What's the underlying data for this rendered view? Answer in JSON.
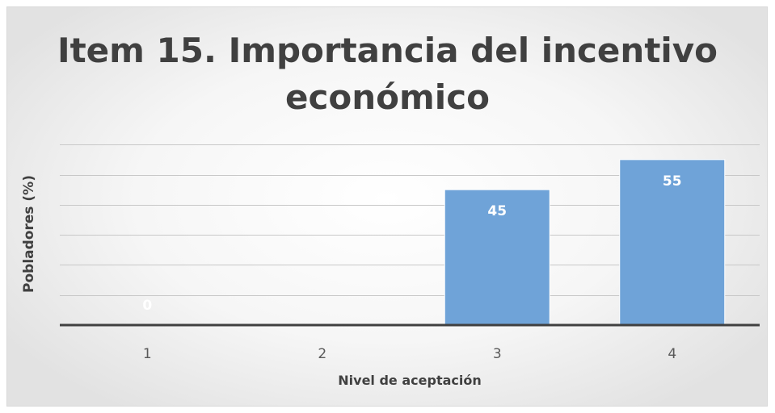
{
  "chart_data": {
    "type": "bar",
    "title": "Item 15. Importancia del incentivo económico",
    "xlabel": "Nivel de aceptación",
    "ylabel": "Pobladores (%)",
    "categories": [
      "1",
      "2",
      "3",
      "4"
    ],
    "values": [
      0,
      null,
      45,
      55
    ],
    "data_labels": [
      "0",
      "",
      "45",
      "55"
    ],
    "ylim": [
      0,
      60
    ],
    "grid": true,
    "legend": "none",
    "colors": {
      "bar": "#6fa3d8",
      "bar_edge": "#ffffff",
      "axis": "#404040",
      "grid": "#c8c8c8"
    }
  }
}
